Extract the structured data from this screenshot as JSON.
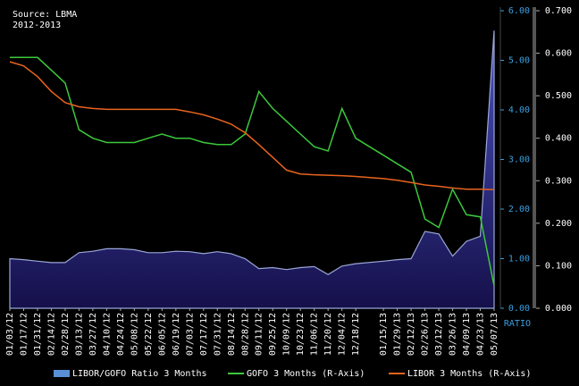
{
  "chart_data": {
    "type": "line",
    "source": "Source: LBMA",
    "subtitle": "2012-2013",
    "y_label": "RATIO",
    "x": [
      "01/03/12",
      "01/17/12",
      "01/31/12",
      "02/14/12",
      "02/28/12",
      "03/13/12",
      "03/27/12",
      "04/10/12",
      "04/24/12",
      "05/08/12",
      "05/22/12",
      "06/05/12",
      "06/19/12",
      "07/03/12",
      "07/17/12",
      "07/31/12",
      "08/14/12",
      "08/28/12",
      "09/11/12",
      "09/25/12",
      "10/09/12",
      "10/23/12",
      "11/06/12",
      "11/20/12",
      "12/04/12",
      "12/18/12",
      "01/15/13",
      "01/29/13",
      "02/12/13",
      "02/26/13",
      "03/12/13",
      "03/26/13",
      "04/09/13",
      "04/23/13",
      "05/07/13"
    ],
    "xlim": [
      "01/03/12",
      "05/07/13"
    ],
    "ylim": [
      0,
      6
    ],
    "yticks": [
      {
        "value": 0,
        "label": "0.00"
      },
      {
        "value": 1,
        "label": "1.00"
      },
      {
        "value": 2,
        "label": "2.00"
      },
      {
        "value": 3,
        "label": "3.00"
      },
      {
        "value": 4,
        "label": "4.00"
      },
      {
        "value": 5,
        "label": "5.00"
      },
      {
        "value": 6,
        "label": "6.00"
      }
    ],
    "y2lim": [
      0,
      0.7
    ],
    "y2ticks": [
      {
        "value": 0,
        "label": "0.000"
      },
      {
        "value": 0.1,
        "label": "0.100"
      },
      {
        "value": 0.2,
        "label": "0.200"
      },
      {
        "value": 0.3,
        "label": "0.300"
      },
      {
        "value": 0.4,
        "label": "0.400"
      },
      {
        "value": 0.5,
        "label": "0.500"
      },
      {
        "value": 0.6,
        "label": "0.600"
      },
      {
        "value": 0.7,
        "label": "0.700"
      }
    ],
    "series": [
      {
        "name": "LIBOR/GOFO Ratio 3 Months",
        "type": "area",
        "color": "#3b3fa0",
        "axis": "y",
        "values": [
          1.0,
          0.98,
          0.95,
          0.92,
          0.92,
          1.12,
          1.15,
          1.2,
          1.2,
          1.18,
          1.12,
          1.12,
          1.15,
          1.14,
          1.1,
          1.14,
          1.1,
          1.0,
          0.8,
          0.82,
          0.78,
          0.82,
          0.84,
          0.68,
          0.85,
          0.9,
          0.95,
          0.98,
          1.0,
          1.55,
          1.5,
          1.05,
          1.35,
          1.45,
          5.6
        ]
      },
      {
        "name": "GOFO 3 Months (R-Axis)",
        "type": "line",
        "color": "#3cc83c",
        "axis": "y2",
        "values": [
          0.59,
          0.59,
          0.59,
          0.56,
          0.53,
          0.42,
          0.4,
          0.39,
          0.39,
          0.39,
          0.4,
          0.41,
          0.4,
          0.4,
          0.39,
          0.385,
          0.385,
          0.41,
          0.51,
          0.47,
          0.44,
          0.41,
          0.38,
          0.37,
          0.47,
          0.4,
          0.36,
          0.34,
          0.32,
          0.21,
          0.19,
          0.28,
          0.22,
          0.215,
          0.053
        ]
      },
      {
        "name": "LIBOR 3 Months (R-Axis)",
        "type": "line",
        "color": "#e8641e",
        "axis": "y2",
        "values": [
          0.58,
          0.57,
          0.545,
          0.51,
          0.484,
          0.474,
          0.47,
          0.468,
          0.468,
          0.468,
          0.468,
          0.468,
          0.468,
          0.462,
          0.455,
          0.445,
          0.433,
          0.413,
          0.385,
          0.355,
          0.325,
          0.316,
          0.314,
          0.313,
          0.312,
          0.31,
          0.305,
          0.301,
          0.296,
          0.29,
          0.287,
          0.283,
          0.28,
          0.28,
          0.279
        ]
      }
    ]
  }
}
